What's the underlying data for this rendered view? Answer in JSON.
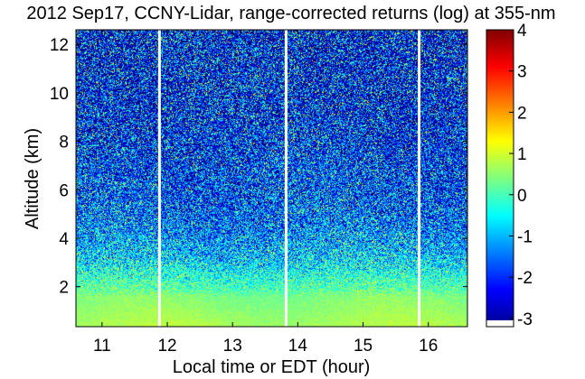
{
  "chart_data": {
    "type": "heatmap",
    "title": "2012 Sep17, CCNY-Lidar, range-corrected returns (log) at 355-nm",
    "xlabel": "Local time or EDT (hour)",
    "ylabel": "Altitude (km)",
    "xlim": [
      10.6,
      16.6
    ],
    "ylim": [
      0.35,
      12.6
    ],
    "x_ticks": [
      "11",
      "12",
      "13",
      "14",
      "15",
      "16"
    ],
    "y_ticks": [
      "2",
      "4",
      "6",
      "8",
      "10",
      "12"
    ],
    "data_gaps_hour": [
      11.88,
      13.82,
      15.86
    ],
    "colorbar": {
      "range": [
        -3.2,
        4
      ],
      "ticks": [
        "4",
        "3",
        "2",
        "1",
        "0",
        "-1",
        "-2",
        "-3"
      ],
      "colormap": "jet"
    },
    "profile": {
      "altitude_km": [
        0.4,
        1.0,
        1.6,
        1.9,
        2.5,
        3.0,
        4.0,
        5.0,
        6.0,
        8.0,
        10.0,
        12.5
      ],
      "mean_log_return": [
        0.7,
        0.55,
        0.4,
        0.1,
        -0.3,
        -0.7,
        -1.2,
        -1.6,
        -1.8,
        -2.1,
        -2.3,
        -2.4
      ],
      "noise_spread": [
        0.15,
        0.15,
        0.2,
        0.5,
        0.7,
        0.9,
        1.1,
        1.3,
        1.4,
        1.6,
        1.8,
        1.9
      ]
    }
  }
}
